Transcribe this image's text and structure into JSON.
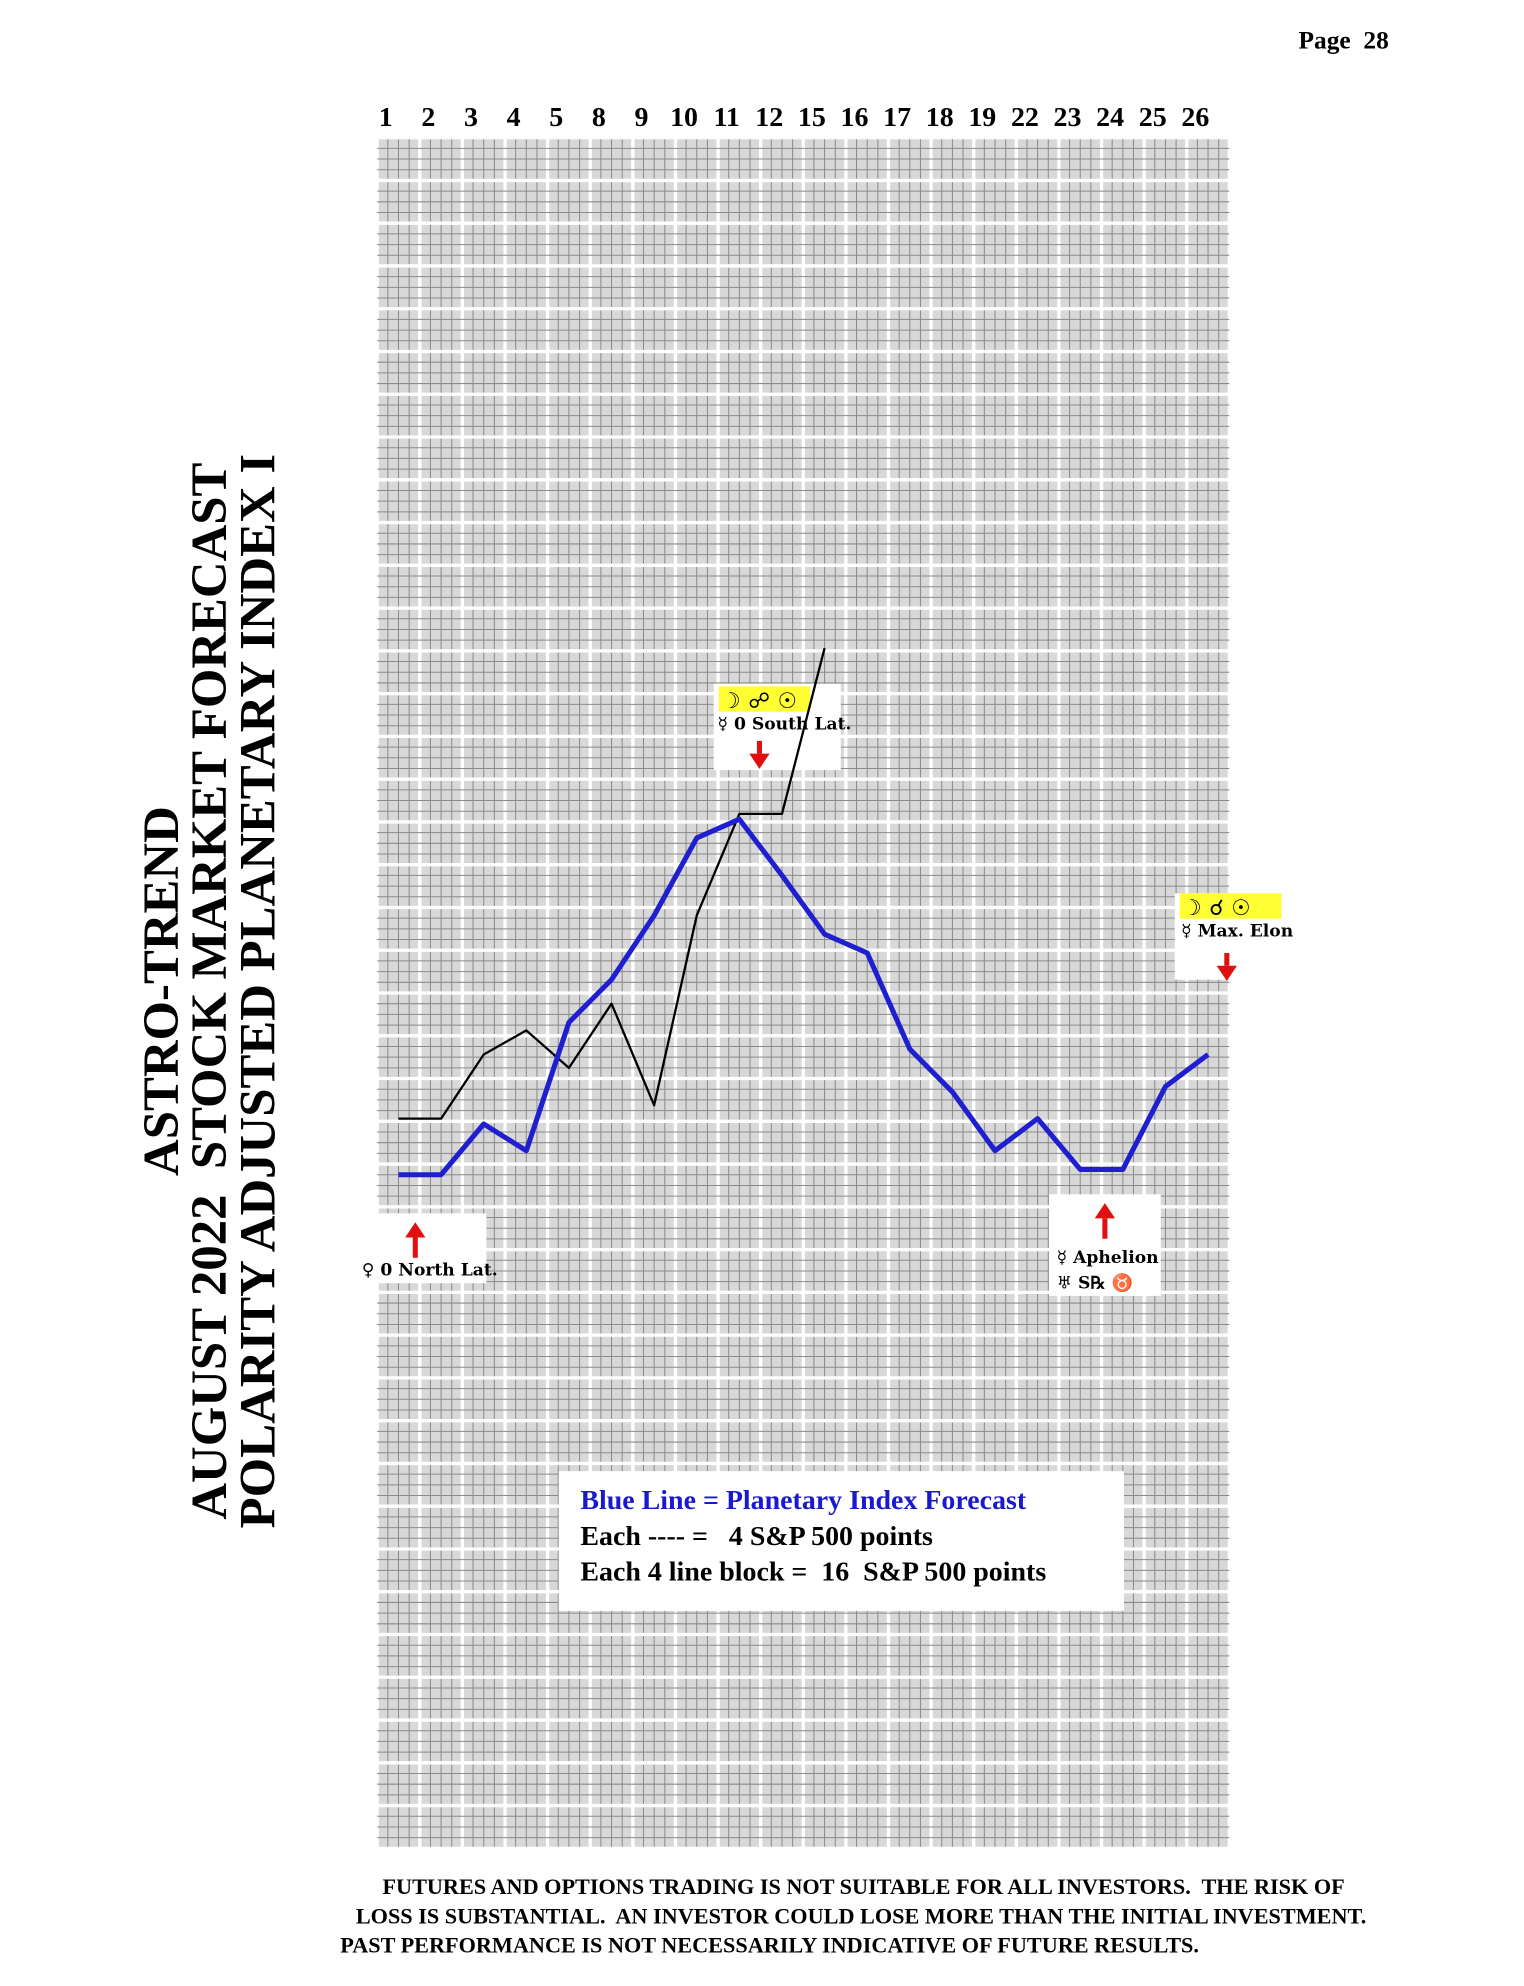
{
  "page": "Page  28",
  "chart_data": {
    "type": "line",
    "title": [
      "ASTRO-TREND",
      "AUGUST 2022  STOCK MARKET FORECAST",
      "POLARITY ADJUSTED PLANETARY INDEX I"
    ],
    "categories": [
      "1",
      "2",
      "3",
      "4",
      "5",
      "8",
      "9",
      "10",
      "11",
      "12",
      "15",
      "16",
      "17",
      "18",
      "19",
      "22",
      "23",
      "24",
      "25",
      "26"
    ],
    "ylim": [
      0,
      640
    ],
    "grid": true,
    "series": [
      {
        "color": "#1f1fd0",
        "values": [
          252,
          252,
          271,
          261,
          309,
          325,
          349,
          378,
          385,
          364,
          342,
          335,
          299,
          283,
          261,
          273,
          254,
          254,
          285,
          297
        ]
      },
      {
        "color": "#000000",
        "values": [
          273,
          273,
          297,
          306,
          292,
          316,
          278,
          349,
          387,
          387,
          449,
          null,
          null,
          null,
          null,
          null,
          null,
          null,
          null,
          null
        ]
      }
    ],
    "annotations": [
      {
        "lines": [
          "♀ 0 North Lat."
        ]
      },
      {
        "symbols": "☽ ☍ ☉",
        "lines": [
          "☿ 0 South Lat."
        ]
      },
      {
        "symbols": "☽ ☌ ☉",
        "lines": [
          "☿ Max. Elon"
        ]
      },
      {
        "lines": [
          "☿ Aphelion",
          "♅ S℞ ♉"
        ]
      }
    ],
    "legend": [
      "Blue Line = Planetary Index Forecast",
      "Each ---- =   4 S&P 500 points",
      "Each 4 line block =  16  S&P 500 points"
    ]
  },
  "disclaimer": [
    "FUTURES AND OPTIONS TRADING IS NOT SUITABLE FOR ALL INVESTORS.  THE RISK OF",
    "LOSS IS SUBSTANTIAL.  AN INVESTOR COULD LOSE MORE THAN THE INITIAL INVESTMENT.",
    "PAST PERFORMANCE IS NOT NECESSARILY INDICATIVE OF FUTURE RESULTS."
  ]
}
